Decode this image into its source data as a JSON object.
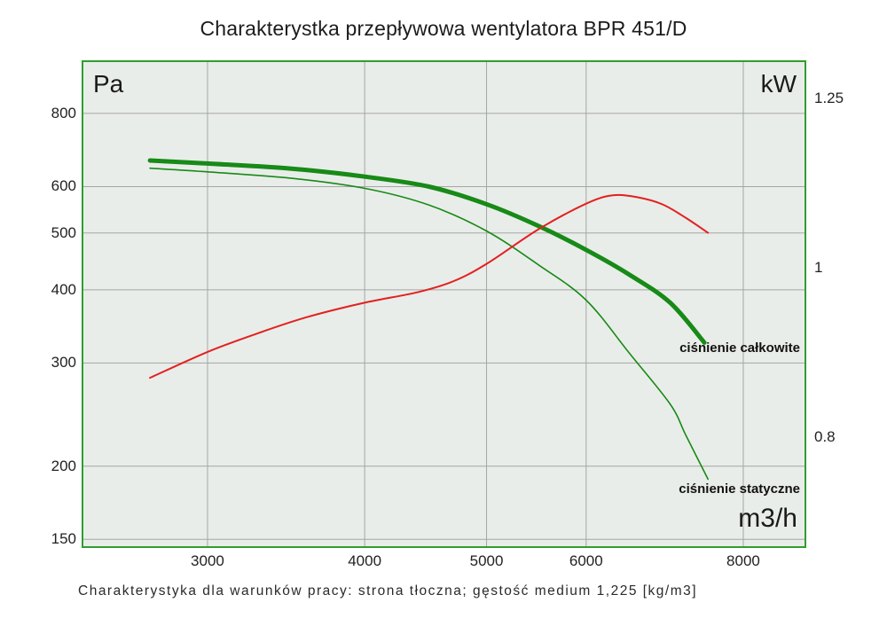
{
  "title": "Charakterystka przepływowa wentylatora BPR 451/D",
  "caption": "Charakterystyka dla warunków pracy: strona tłoczna; gęstość medium 1,225 [kg/m3]",
  "units": {
    "left": "Pa",
    "right": "kW",
    "x": "m3/h"
  },
  "annotations": {
    "total_pressure": "ciśnienie całkowite",
    "static_pressure": "ciśnienie statyczne"
  },
  "colors": {
    "green_curve": "#178a17",
    "red_curve": "#e32020",
    "plot_background": "#e9ede9",
    "plot_border": "#2f9e2f",
    "gridline": "#a5a5a5",
    "text": "#1c1c1c"
  },
  "chart_data": {
    "type": "line",
    "title": "Charakterystka przepływowa wentylatora BPR 451/D",
    "grid": true,
    "x_axis": {
      "label": "m3/h",
      "scale": "log",
      "min": 2390,
      "max": 8949,
      "ticks": [
        3000,
        4000,
        5000,
        6000,
        8000
      ]
    },
    "y_axis_left": {
      "label": "Pa",
      "scale": "log",
      "min": 146,
      "max": 979,
      "ticks": [
        800,
        600,
        500,
        400,
        300,
        200,
        150
      ]
    },
    "y_axis_right": {
      "label": "kW",
      "scale": "log",
      "min": 0.693,
      "max": 1.311,
      "ticks": [
        {
          "value": 1.25,
          "label": "1.25"
        },
        {
          "value": 1.0,
          "label": "1"
        },
        {
          "value": 0.8,
          "label": "0.8"
        }
      ]
    },
    "series": [
      {
        "id": "cisnienie-calkowite",
        "label": "ciśnienie całkowite",
        "axis": "left",
        "color": "#178a17",
        "stroke_width": 5,
        "points": [
          [
            2700,
            665
          ],
          [
            3000,
            657
          ],
          [
            3500,
            644
          ],
          [
            4000,
            624
          ],
          [
            4500,
            600
          ],
          [
            5000,
            560
          ],
          [
            5500,
            514
          ],
          [
            6000,
            468
          ],
          [
            6500,
            424
          ],
          [
            7000,
            380
          ],
          [
            7450,
            325
          ]
        ]
      },
      {
        "id": "cisnienie-statyczne",
        "label": "ciśnienie statyczne",
        "axis": "left",
        "color": "#178a17",
        "stroke_width": 1.6,
        "points": [
          [
            2700,
            645
          ],
          [
            3000,
            636
          ],
          [
            3500,
            620
          ],
          [
            4000,
            596
          ],
          [
            4500,
            558
          ],
          [
            5000,
            504
          ],
          [
            5500,
            441
          ],
          [
            6000,
            384
          ],
          [
            6500,
            311
          ],
          [
            7000,
            255
          ],
          [
            7200,
            226
          ],
          [
            7500,
            190
          ]
        ]
      },
      {
        "id": "moc-kw",
        "label": "",
        "axis": "right",
        "color": "#e32020",
        "stroke_width": 2,
        "points": [
          [
            2700,
            0.865
          ],
          [
            3000,
            0.895
          ],
          [
            3300,
            0.918
          ],
          [
            3600,
            0.937
          ],
          [
            4000,
            0.955
          ],
          [
            4400,
            0.968
          ],
          [
            4700,
            0.982
          ],
          [
            5000,
            1.005
          ],
          [
            5500,
            1.052
          ],
          [
            6000,
            1.088
          ],
          [
            6300,
            1.1
          ],
          [
            6600,
            1.097
          ],
          [
            6900,
            1.087
          ],
          [
            7200,
            1.068
          ],
          [
            7500,
            1.047
          ]
        ]
      }
    ]
  }
}
